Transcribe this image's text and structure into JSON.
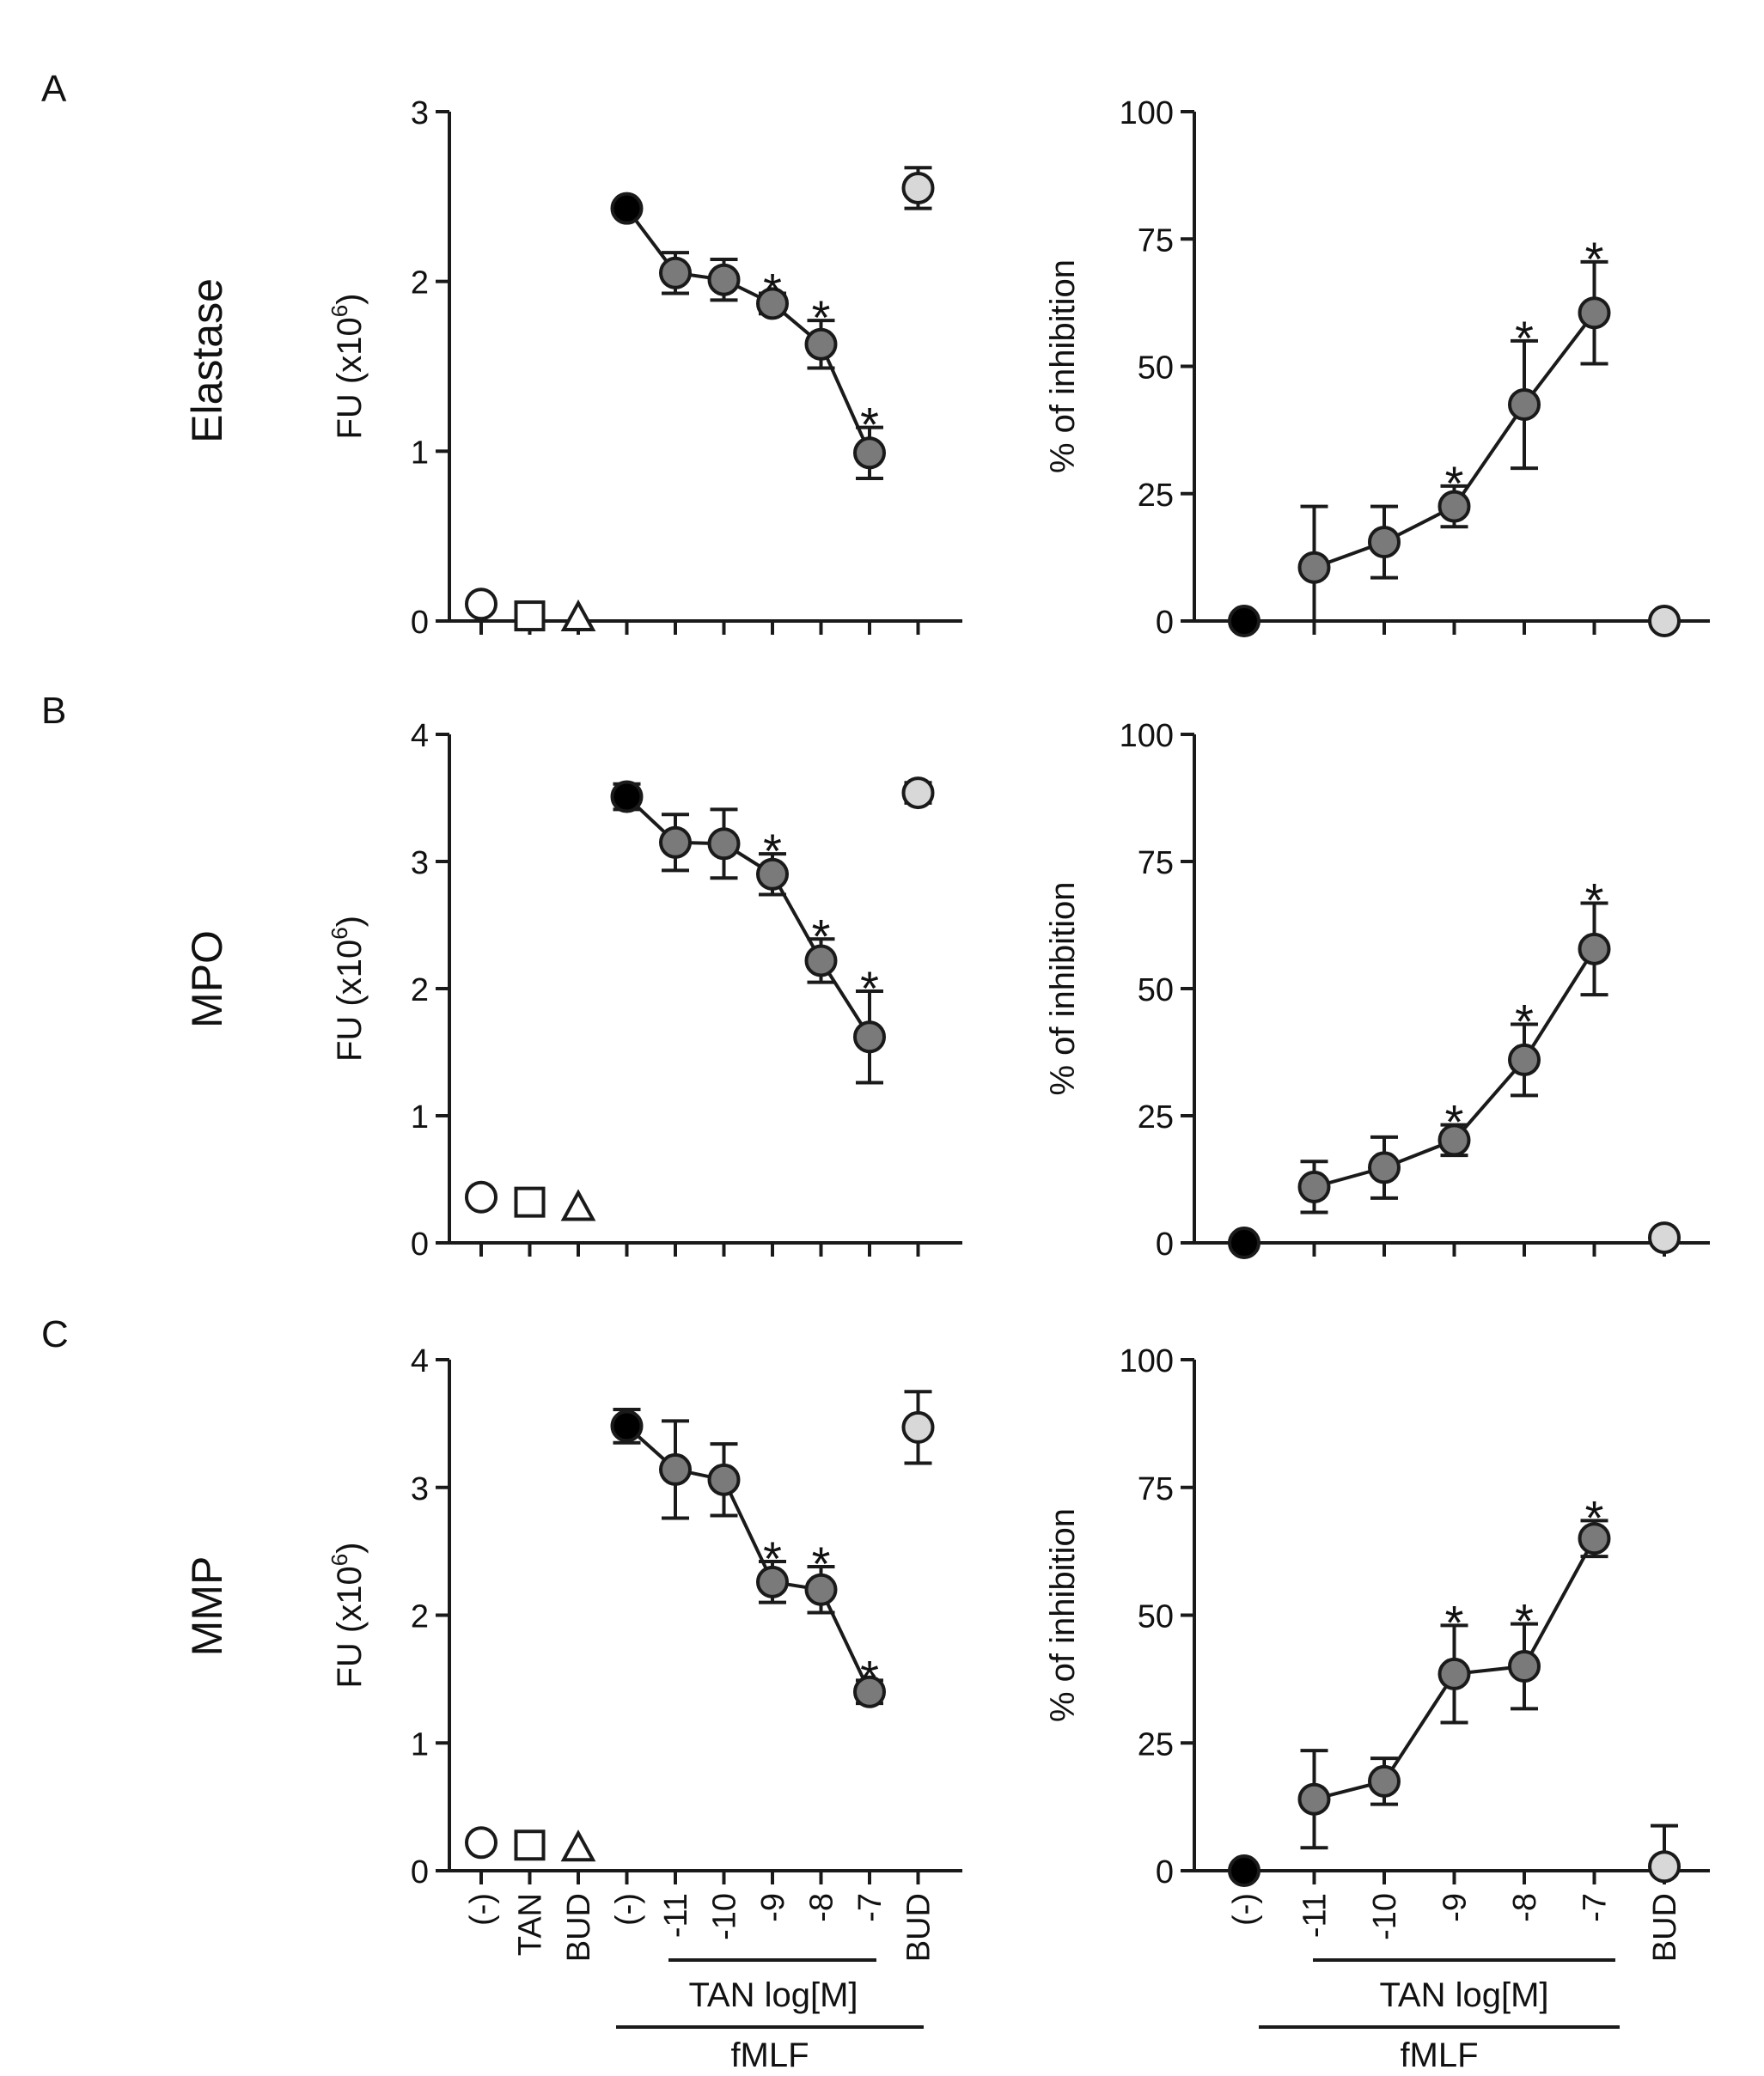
{
  "panels": [
    {
      "letter": "A",
      "row_label": "Elastase"
    },
    {
      "letter": "B",
      "row_label": "MPO"
    },
    {
      "letter": "C",
      "row_label": "MMP"
    }
  ],
  "x_labels": {
    "left": [
      "(-)",
      "TAN",
      "BUD",
      "(-)",
      "-11",
      "-10",
      "-9",
      "-8",
      "-7",
      "BUD"
    ],
    "right": [
      "(-)",
      "-11",
      "-10",
      "-9",
      "-8",
      "-7",
      "BUD"
    ],
    "tan_group": "TAN log[M]",
    "fmlf_group": "fMLF"
  },
  "colors": {
    "black": "#000000",
    "dark_gray": "#7a7a7a",
    "light_gray": "#d8d8d8",
    "white": "#ffffff",
    "line": "#1a1a1a"
  },
  "chart_data": [
    {
      "id": "A-left",
      "type": "scatter",
      "title": "",
      "xlabel": "",
      "ylabel": "FU (x10",
      "ylabel_sup": "6",
      "ylabel_tail": ")",
      "ylim": [
        0,
        3
      ],
      "yticks": [
        0,
        1,
        2,
        3
      ],
      "categories": [
        "(-)",
        "TAN",
        "BUD",
        "(-)",
        "-11",
        "-10",
        "-9",
        "-8",
        "-7",
        "BUD"
      ],
      "points": [
        {
          "x": 0,
          "y": 0.1,
          "err": 0,
          "marker": "circle",
          "fill": "white"
        },
        {
          "x": 1,
          "y": 0.03,
          "err": 0,
          "marker": "square",
          "fill": "white"
        },
        {
          "x": 2,
          "y": 0.02,
          "err": 0,
          "marker": "triangle",
          "fill": "white"
        },
        {
          "x": 3,
          "y": 2.43,
          "err": 0.04,
          "marker": "circle",
          "fill": "black"
        },
        {
          "x": 4,
          "y": 2.05,
          "err": 0.12,
          "marker": "circle",
          "fill": "dark"
        },
        {
          "x": 5,
          "y": 2.01,
          "err": 0.12,
          "marker": "circle",
          "fill": "dark"
        },
        {
          "x": 6,
          "y": 1.87,
          "err": 0.06,
          "marker": "circle",
          "fill": "dark",
          "star": true
        },
        {
          "x": 7,
          "y": 1.63,
          "err": 0.14,
          "marker": "circle",
          "fill": "dark",
          "star": true
        },
        {
          "x": 8,
          "y": 0.99,
          "err": 0.15,
          "marker": "circle",
          "fill": "dark",
          "star": true
        },
        {
          "x": 9,
          "y": 2.55,
          "err": 0.12,
          "marker": "circle",
          "fill": "light"
        }
      ],
      "line": [
        3,
        4,
        5,
        6,
        7,
        8
      ]
    },
    {
      "id": "A-right",
      "type": "scatter",
      "title": "",
      "xlabel": "",
      "ylabel": "% of inhibition",
      "ylim": [
        0,
        100
      ],
      "yticks": [
        0,
        25,
        50,
        75,
        100
      ],
      "categories": [
        "(-)",
        "-11",
        "-10",
        "-9",
        "-8",
        "-7",
        "BUD"
      ],
      "points": [
        {
          "x": 0,
          "y": 0,
          "err": 0,
          "marker": "circle",
          "fill": "black"
        },
        {
          "x": 1,
          "y": 10.5,
          "err": 12,
          "marker": "circle",
          "fill": "dark"
        },
        {
          "x": 2,
          "y": 15.5,
          "err": 7,
          "marker": "circle",
          "fill": "dark"
        },
        {
          "x": 3,
          "y": 22.5,
          "err": 4,
          "marker": "circle",
          "fill": "dark",
          "star": true
        },
        {
          "x": 4,
          "y": 42.5,
          "err": 12.5,
          "marker": "circle",
          "fill": "dark",
          "star": true
        },
        {
          "x": 5,
          "y": 60.5,
          "err": 10,
          "marker": "circle",
          "fill": "dark",
          "star": true
        },
        {
          "x": 6,
          "y": 0,
          "err": 0,
          "marker": "circle",
          "fill": "light"
        }
      ],
      "line": [
        1,
        2,
        3,
        4,
        5
      ]
    },
    {
      "id": "B-left",
      "type": "scatter",
      "title": "",
      "xlabel": "",
      "ylabel": "FU (x10",
      "ylabel_sup": "6",
      "ylabel_tail": ")",
      "ylim": [
        0,
        4
      ],
      "yticks": [
        0,
        1,
        2,
        3,
        4
      ],
      "categories": [
        "(-)",
        "TAN",
        "BUD",
        "(-)",
        "-11",
        "-10",
        "-9",
        "-8",
        "-7",
        "BUD"
      ],
      "points": [
        {
          "x": 0,
          "y": 0.36,
          "err": 0,
          "marker": "circle",
          "fill": "white"
        },
        {
          "x": 1,
          "y": 0.32,
          "err": 0,
          "marker": "square",
          "fill": "white"
        },
        {
          "x": 2,
          "y": 0.28,
          "err": 0,
          "marker": "triangle",
          "fill": "white"
        },
        {
          "x": 3,
          "y": 3.51,
          "err": 0.1,
          "marker": "circle",
          "fill": "black"
        },
        {
          "x": 4,
          "y": 3.15,
          "err": 0.22,
          "marker": "circle",
          "fill": "dark"
        },
        {
          "x": 5,
          "y": 3.14,
          "err": 0.27,
          "marker": "circle",
          "fill": "dark"
        },
        {
          "x": 6,
          "y": 2.9,
          "err": 0.16,
          "marker": "circle",
          "fill": "dark",
          "star": true
        },
        {
          "x": 7,
          "y": 2.22,
          "err": 0.17,
          "marker": "circle",
          "fill": "dark",
          "star": true
        },
        {
          "x": 8,
          "y": 1.62,
          "err": 0.36,
          "marker": "circle",
          "fill": "dark",
          "star": true
        },
        {
          "x": 9,
          "y": 3.54,
          "err": 0.08,
          "marker": "circle",
          "fill": "light"
        }
      ],
      "line": [
        3,
        4,
        5,
        6,
        7,
        8
      ]
    },
    {
      "id": "B-right",
      "type": "scatter",
      "title": "",
      "xlabel": "",
      "ylabel": "% of inhibition",
      "ylim": [
        0,
        100
      ],
      "yticks": [
        0,
        25,
        50,
        75,
        100
      ],
      "categories": [
        "(-)",
        "-11",
        "-10",
        "-9",
        "-8",
        "-7",
        "BUD"
      ],
      "points": [
        {
          "x": 0,
          "y": 0,
          "err": 0,
          "marker": "circle",
          "fill": "black"
        },
        {
          "x": 1,
          "y": 11,
          "err": 5,
          "marker": "circle",
          "fill": "dark"
        },
        {
          "x": 2,
          "y": 14.8,
          "err": 6,
          "marker": "circle",
          "fill": "dark"
        },
        {
          "x": 3,
          "y": 20.2,
          "err": 3,
          "marker": "circle",
          "fill": "dark",
          "star": true
        },
        {
          "x": 4,
          "y": 36,
          "err": 7,
          "marker": "circle",
          "fill": "dark",
          "star": true
        },
        {
          "x": 5,
          "y": 57.8,
          "err": 9,
          "marker": "circle",
          "fill": "dark",
          "star": true
        },
        {
          "x": 6,
          "y": 1,
          "err": 0,
          "marker": "circle",
          "fill": "light"
        }
      ],
      "line": [
        1,
        2,
        3,
        4,
        5
      ]
    },
    {
      "id": "C-left",
      "type": "scatter",
      "title": "",
      "xlabel": "",
      "ylabel": "FU (x10",
      "ylabel_sup": "6",
      "ylabel_tail": ")",
      "ylim": [
        0,
        4
      ],
      "yticks": [
        0,
        1,
        2,
        3,
        4
      ],
      "categories": [
        "(-)",
        "TAN",
        "BUD",
        "(-)",
        "-11",
        "-10",
        "-9",
        "-8",
        "-7",
        "BUD"
      ],
      "points": [
        {
          "x": 0,
          "y": 0.22,
          "err": 0,
          "marker": "circle",
          "fill": "white"
        },
        {
          "x": 1,
          "y": 0.2,
          "err": 0,
          "marker": "square",
          "fill": "white"
        },
        {
          "x": 2,
          "y": 0.18,
          "err": 0,
          "marker": "triangle",
          "fill": "white"
        },
        {
          "x": 3,
          "y": 3.48,
          "err": 0.13,
          "marker": "circle",
          "fill": "black"
        },
        {
          "x": 4,
          "y": 3.14,
          "err": 0.38,
          "marker": "circle",
          "fill": "dark"
        },
        {
          "x": 5,
          "y": 3.06,
          "err": 0.28,
          "marker": "circle",
          "fill": "dark"
        },
        {
          "x": 6,
          "y": 2.26,
          "err": 0.16,
          "marker": "circle",
          "fill": "dark",
          "star": true
        },
        {
          "x": 7,
          "y": 2.2,
          "err": 0.18,
          "marker": "circle",
          "fill": "dark",
          "star": true
        },
        {
          "x": 8,
          "y": 1.4,
          "err": 0.09,
          "marker": "circle",
          "fill": "dark",
          "star": true
        },
        {
          "x": 9,
          "y": 3.47,
          "err": 0.28,
          "marker": "circle",
          "fill": "light"
        }
      ],
      "line": [
        3,
        4,
        5,
        6,
        7,
        8
      ]
    },
    {
      "id": "C-right",
      "type": "scatter",
      "title": "",
      "xlabel": "",
      "ylabel": "% of inhibition",
      "ylim": [
        0,
        100
      ],
      "yticks": [
        0,
        25,
        50,
        75,
        100
      ],
      "categories": [
        "(-)",
        "-11",
        "-10",
        "-9",
        "-8",
        "-7",
        "BUD"
      ],
      "points": [
        {
          "x": 0,
          "y": 0,
          "err": 0,
          "marker": "circle",
          "fill": "black"
        },
        {
          "x": 1,
          "y": 14,
          "err": 9.5,
          "marker": "circle",
          "fill": "dark"
        },
        {
          "x": 2,
          "y": 17.5,
          "err": 4.5,
          "marker": "circle",
          "fill": "dark"
        },
        {
          "x": 3,
          "y": 38.5,
          "err": 9.5,
          "marker": "circle",
          "fill": "dark",
          "star": true
        },
        {
          "x": 4,
          "y": 40,
          "err": 8.3,
          "marker": "circle",
          "fill": "dark",
          "star": true
        },
        {
          "x": 5,
          "y": 65,
          "err": 3.5,
          "marker": "circle",
          "fill": "dark",
          "star": true
        },
        {
          "x": 6,
          "y": 0.8,
          "err": 8,
          "marker": "circle",
          "fill": "light"
        }
      ],
      "line": [
        1,
        2,
        3,
        4,
        5
      ]
    }
  ]
}
